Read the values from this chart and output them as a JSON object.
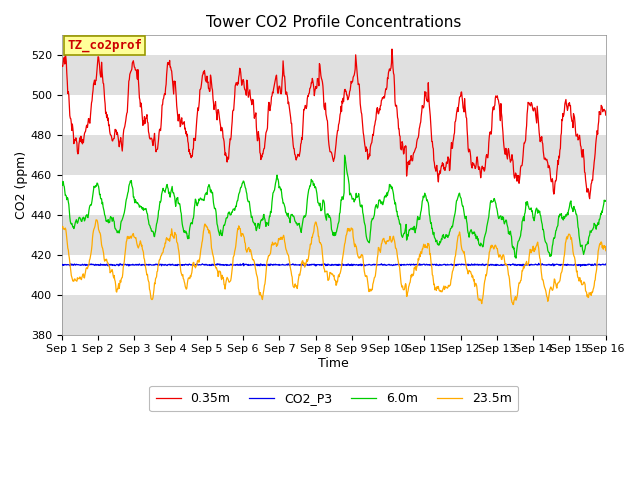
{
  "title": "Tower CO2 Profile Concentrations",
  "xlabel": "Time",
  "ylabel": "CO2 (ppm)",
  "ylim": [
    380,
    530
  ],
  "yticks": [
    380,
    400,
    420,
    440,
    460,
    480,
    500,
    520
  ],
  "xlim": [
    0,
    15
  ],
  "xtick_labels": [
    "Sep 1",
    "Sep 2",
    "Sep 3",
    "Sep 4",
    "Sep 5",
    "Sep 6",
    "Sep 7",
    "Sep 8",
    "Sep 9",
    "Sep 10",
    "Sep 11",
    "Sep 12",
    "Sep 13",
    "Sep 14",
    "Sep 15",
    "Sep 16"
  ],
  "series": [
    {
      "label": "0.35m",
      "color": "#ee0000"
    },
    {
      "label": "CO2_P3",
      "color": "#0000ee"
    },
    {
      "label": "6.0m",
      "color": "#00cc00"
    },
    {
      "label": "23.5m",
      "color": "#ffaa00"
    }
  ],
  "annotation_text": "TZ_co2prof",
  "annotation_color": "#cc0000",
  "annotation_bg": "#ffff99",
  "annotation_border": "#999900",
  "stripe_color": "#e0e0e0",
  "title_fontsize": 11,
  "label_fontsize": 9,
  "tick_fontsize": 8
}
